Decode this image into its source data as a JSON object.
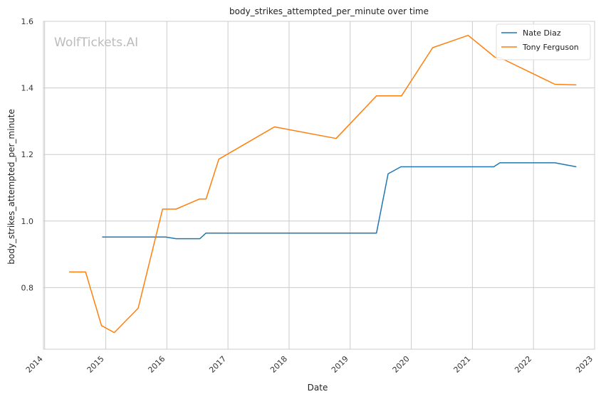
{
  "chart_data": {
    "type": "line",
    "title": "body_strikes_attempted_per_minute over time",
    "xlabel": "Date",
    "ylabel": "body_strikes_attempted_per_minute",
    "watermark": "WolfTickets.AI",
    "xlim": [
      2013.98,
      2023.0
    ],
    "ylim": [
      0.615,
      1.6
    ],
    "x_ticks": [
      2014,
      2015,
      2016,
      2017,
      2018,
      2019,
      2020,
      2021,
      2022,
      2023
    ],
    "x_tick_labels": [
      "2014",
      "2015",
      "2016",
      "2017",
      "2018",
      "2019",
      "2020",
      "2021",
      "2022",
      "2023"
    ],
    "y_ticks": [
      0.8,
      1.0,
      1.2,
      1.4,
      1.6
    ],
    "y_tick_labels": [
      "0.8",
      "1.0",
      "1.2",
      "1.4",
      "1.6"
    ],
    "grid": true,
    "legend_position": "top-right",
    "series": [
      {
        "name": "Nate Diaz",
        "color": "#1f77b4",
        "points": [
          [
            2014.94,
            0.952
          ],
          [
            2015.98,
            0.952
          ],
          [
            2016.15,
            0.947
          ],
          [
            2016.54,
            0.947
          ],
          [
            2016.64,
            0.964
          ],
          [
            2019.43,
            0.964
          ],
          [
            2019.62,
            1.142
          ],
          [
            2019.83,
            1.163
          ],
          [
            2021.35,
            1.163
          ],
          [
            2021.45,
            1.175
          ],
          [
            2022.35,
            1.175
          ],
          [
            2022.7,
            1.163
          ]
        ]
      },
      {
        "name": "Tony Ferguson",
        "color": "#ff7f0e",
        "points": [
          [
            2014.4,
            0.847
          ],
          [
            2014.67,
            0.847
          ],
          [
            2014.93,
            0.686
          ],
          [
            2015.14,
            0.665
          ],
          [
            2015.53,
            0.738
          ],
          [
            2015.93,
            1.036
          ],
          [
            2016.15,
            1.036
          ],
          [
            2016.53,
            1.066
          ],
          [
            2016.64,
            1.066
          ],
          [
            2016.85,
            1.186
          ],
          [
            2017.76,
            1.283
          ],
          [
            2018.77,
            1.248
          ],
          [
            2019.43,
            1.376
          ],
          [
            2019.84,
            1.376
          ],
          [
            2020.35,
            1.521
          ],
          [
            2020.93,
            1.558
          ],
          [
            2021.37,
            1.492
          ],
          [
            2021.45,
            1.491
          ],
          [
            2022.35,
            1.411
          ],
          [
            2022.7,
            1.409
          ]
        ]
      }
    ]
  }
}
